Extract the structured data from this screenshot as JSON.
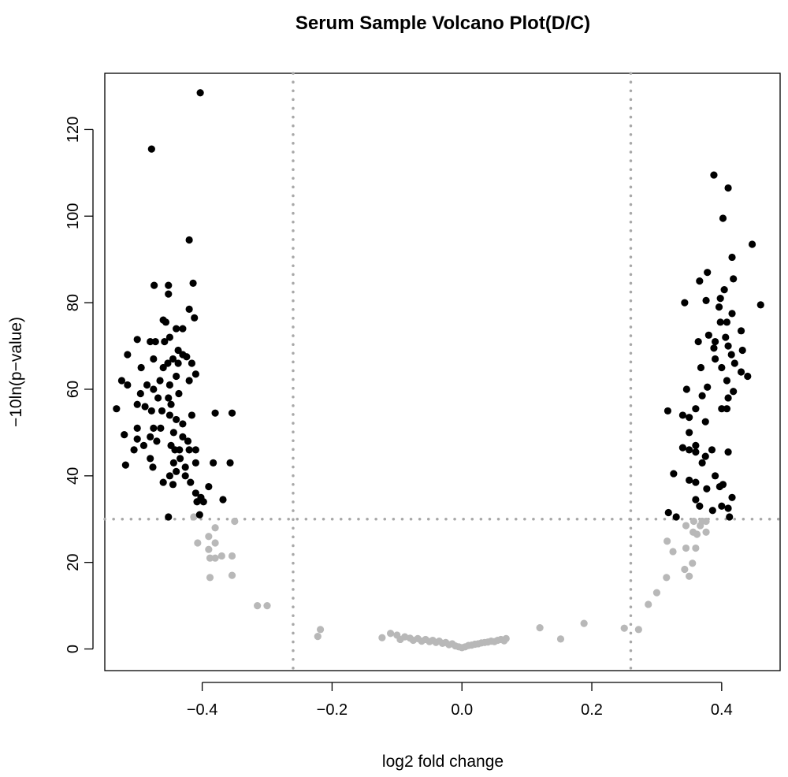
{
  "chart_data": {
    "type": "scatter",
    "title": "Serum Sample Volcano Plot(D/C)",
    "xlabel": "log2 fold change",
    "ylabel": "−10ln(p−value)",
    "xlim": [
      -0.55,
      0.49
    ],
    "ylim": [
      -5,
      133
    ],
    "xticks": [
      -0.4,
      -0.2,
      0.0,
      0.2,
      0.4
    ],
    "xtick_labels": [
      "−0.4",
      "−0.2",
      "0.0",
      "0.2",
      "0.4"
    ],
    "yticks": [
      0,
      20,
      40,
      60,
      80,
      100,
      120
    ],
    "ytick_labels": [
      "0",
      "20",
      "40",
      "60",
      "80",
      "100",
      "120"
    ],
    "thresholds": {
      "x": [
        -0.26,
        0.26
      ],
      "y": 30
    },
    "grid": false,
    "legend": "none",
    "colors": {
      "significant": "#000000",
      "nonsignificant": "#b8b8b8",
      "threshold": "#a8a8a8"
    },
    "series": [
      {
        "name": "significant",
        "color": "#000000",
        "points": [
          [
            -0.403,
            128.5
          ],
          [
            -0.478,
            115.5
          ],
          [
            -0.42,
            94.5
          ],
          [
            -0.414,
            84.5
          ],
          [
            -0.474,
            84
          ],
          [
            -0.452,
            84
          ],
          [
            -0.452,
            82
          ],
          [
            -0.42,
            78.5
          ],
          [
            -0.412,
            76.5
          ],
          [
            -0.46,
            76
          ],
          [
            -0.456,
            75.5
          ],
          [
            -0.43,
            74
          ],
          [
            -0.44,
            74
          ],
          [
            -0.48,
            71
          ],
          [
            -0.5,
            71.5
          ],
          [
            -0.472,
            71
          ],
          [
            -0.458,
            71
          ],
          [
            -0.45,
            72
          ],
          [
            -0.437,
            69
          ],
          [
            -0.43,
            68
          ],
          [
            -0.445,
            67
          ],
          [
            -0.453,
            66
          ],
          [
            -0.437,
            66
          ],
          [
            -0.46,
            65
          ],
          [
            -0.475,
            67
          ],
          [
            -0.494,
            65
          ],
          [
            -0.515,
            68
          ],
          [
            -0.424,
            67.5
          ],
          [
            -0.416,
            66
          ],
          [
            -0.41,
            63.5
          ],
          [
            -0.44,
            63
          ],
          [
            -0.465,
            62
          ],
          [
            -0.42,
            62
          ],
          [
            -0.45,
            61
          ],
          [
            -0.485,
            61
          ],
          [
            -0.475,
            60
          ],
          [
            -0.495,
            59
          ],
          [
            -0.515,
            61
          ],
          [
            -0.524,
            62
          ],
          [
            -0.468,
            58
          ],
          [
            -0.452,
            58
          ],
          [
            -0.436,
            59
          ],
          [
            -0.448,
            56.5
          ],
          [
            -0.462,
            55
          ],
          [
            -0.478,
            55
          ],
          [
            -0.488,
            56
          ],
          [
            -0.5,
            56.5
          ],
          [
            -0.532,
            55.5
          ],
          [
            -0.45,
            54
          ],
          [
            -0.44,
            53
          ],
          [
            -0.416,
            54
          ],
          [
            -0.38,
            54.5
          ],
          [
            -0.354,
            54.5
          ],
          [
            -0.43,
            52
          ],
          [
            -0.464,
            51
          ],
          [
            -0.475,
            51
          ],
          [
            -0.5,
            51
          ],
          [
            -0.444,
            50
          ],
          [
            -0.48,
            49
          ],
          [
            -0.52,
            49.5
          ],
          [
            -0.43,
            49
          ],
          [
            -0.422,
            48
          ],
          [
            -0.47,
            48
          ],
          [
            -0.5,
            48.5
          ],
          [
            -0.448,
            47
          ],
          [
            -0.442,
            46
          ],
          [
            -0.435,
            46
          ],
          [
            -0.42,
            46
          ],
          [
            -0.41,
            46
          ],
          [
            -0.49,
            47
          ],
          [
            -0.505,
            46
          ],
          [
            -0.48,
            44
          ],
          [
            -0.434,
            44
          ],
          [
            -0.444,
            43
          ],
          [
            -0.426,
            42
          ],
          [
            -0.41,
            43
          ],
          [
            -0.383,
            43
          ],
          [
            -0.357,
            43
          ],
          [
            -0.476,
            42
          ],
          [
            -0.518,
            42.5
          ],
          [
            -0.44,
            41
          ],
          [
            -0.45,
            40
          ],
          [
            -0.426,
            40
          ],
          [
            -0.46,
            38.5
          ],
          [
            -0.445,
            38
          ],
          [
            -0.418,
            38.5
          ],
          [
            -0.41,
            36
          ],
          [
            -0.39,
            37.5
          ],
          [
            -0.402,
            35
          ],
          [
            -0.398,
            34
          ],
          [
            -0.368,
            34.5
          ],
          [
            -0.408,
            34
          ],
          [
            -0.404,
            31
          ],
          [
            -0.452,
            30.5
          ],
          [
            0.388,
            109.5
          ],
          [
            0.41,
            106.5
          ],
          [
            0.402,
            99.5
          ],
          [
            0.447,
            93.5
          ],
          [
            0.416,
            90.5
          ],
          [
            0.378,
            87
          ],
          [
            0.366,
            85
          ],
          [
            0.418,
            85.5
          ],
          [
            0.404,
            83
          ],
          [
            0.398,
            81
          ],
          [
            0.376,
            80.5
          ],
          [
            0.343,
            80
          ],
          [
            0.396,
            79
          ],
          [
            0.46,
            79.5
          ],
          [
            0.416,
            77.5
          ],
          [
            0.398,
            75.5
          ],
          [
            0.408,
            75.5
          ],
          [
            0.43,
            73.5
          ],
          [
            0.364,
            71
          ],
          [
            0.38,
            72.5
          ],
          [
            0.39,
            71
          ],
          [
            0.388,
            69.5
          ],
          [
            0.406,
            72
          ],
          [
            0.41,
            70
          ],
          [
            0.415,
            68
          ],
          [
            0.432,
            69
          ],
          [
            0.39,
            67
          ],
          [
            0.368,
            65
          ],
          [
            0.4,
            65
          ],
          [
            0.42,
            66
          ],
          [
            0.43,
            64
          ],
          [
            0.44,
            63
          ],
          [
            0.408,
            62
          ],
          [
            0.378,
            60.5
          ],
          [
            0.346,
            60
          ],
          [
            0.418,
            59.5
          ],
          [
            0.41,
            58
          ],
          [
            0.37,
            58.5
          ],
          [
            0.36,
            55.5
          ],
          [
            0.4,
            55.5
          ],
          [
            0.408,
            55.5
          ],
          [
            0.317,
            55
          ],
          [
            0.34,
            54
          ],
          [
            0.35,
            53.5
          ],
          [
            0.375,
            52.5
          ],
          [
            0.35,
            50
          ],
          [
            0.36,
            47
          ],
          [
            0.35,
            46
          ],
          [
            0.34,
            46.5
          ],
          [
            0.36,
            45.5
          ],
          [
            0.375,
            44.5
          ],
          [
            0.385,
            46
          ],
          [
            0.41,
            45.5
          ],
          [
            0.37,
            43
          ],
          [
            0.326,
            40.5
          ],
          [
            0.35,
            39
          ],
          [
            0.36,
            38.5
          ],
          [
            0.39,
            40
          ],
          [
            0.397,
            37.5
          ],
          [
            0.402,
            38
          ],
          [
            0.36,
            34.5
          ],
          [
            0.377,
            37
          ],
          [
            0.366,
            33
          ],
          [
            0.4,
            33
          ],
          [
            0.41,
            32.5
          ],
          [
            0.416,
            35
          ],
          [
            0.386,
            32
          ],
          [
            0.318,
            31.5
          ],
          [
            0.33,
            30.5
          ],
          [
            0.412,
            30.5
          ]
        ]
      },
      {
        "name": "nonsignificant",
        "color": "#b8b8b8",
        "points": [
          [
            -0.413,
            30.5
          ],
          [
            -0.35,
            29.5
          ],
          [
            -0.38,
            28
          ],
          [
            -0.39,
            26
          ],
          [
            -0.407,
            24.5
          ],
          [
            -0.38,
            24.5
          ],
          [
            -0.39,
            23
          ],
          [
            -0.37,
            21.5
          ],
          [
            -0.388,
            21
          ],
          [
            -0.38,
            21
          ],
          [
            -0.354,
            21.5
          ],
          [
            -0.354,
            17
          ],
          [
            -0.388,
            16.5
          ],
          [
            -0.315,
            10
          ],
          [
            -0.3,
            10
          ],
          [
            -0.218,
            4.5
          ],
          [
            -0.222,
            2.9
          ],
          [
            -0.123,
            2.6
          ],
          [
            -0.11,
            3.6
          ],
          [
            -0.1,
            3.2
          ],
          [
            -0.095,
            2.2
          ],
          [
            -0.088,
            2.8
          ],
          [
            -0.08,
            2.5
          ],
          [
            -0.075,
            2.0
          ],
          [
            -0.068,
            2.4
          ],
          [
            -0.062,
            1.8
          ],
          [
            -0.056,
            2.2
          ],
          [
            -0.05,
            1.7
          ],
          [
            -0.045,
            2.0
          ],
          [
            -0.04,
            1.5
          ],
          [
            -0.035,
            1.8
          ],
          [
            -0.03,
            1.3
          ],
          [
            -0.025,
            1.5
          ],
          [
            -0.02,
            1.0
          ],
          [
            -0.015,
            1.2
          ],
          [
            -0.01,
            0.7
          ],
          [
            -0.005,
            0.5
          ],
          [
            0.0,
            0.3
          ],
          [
            0.005,
            0.5
          ],
          [
            0.01,
            0.8
          ],
          [
            0.015,
            0.9
          ],
          [
            0.02,
            1.1
          ],
          [
            0.025,
            1.2
          ],
          [
            0.03,
            1.4
          ],
          [
            0.035,
            1.5
          ],
          [
            0.04,
            1.6
          ],
          [
            0.045,
            1.8
          ],
          [
            0.05,
            1.7
          ],
          [
            0.055,
            2.0
          ],
          [
            0.06,
            2.2
          ],
          [
            0.065,
            1.9
          ],
          [
            0.068,
            2.4
          ],
          [
            0.12,
            4.9
          ],
          [
            0.152,
            2.3
          ],
          [
            0.188,
            5.9
          ],
          [
            0.25,
            4.8
          ],
          [
            0.272,
            4.5
          ],
          [
            0.287,
            10.3
          ],
          [
            0.3,
            13
          ],
          [
            0.315,
            16.5
          ],
          [
            0.316,
            24.9
          ],
          [
            0.325,
            22.5
          ],
          [
            0.343,
            18.4
          ],
          [
            0.345,
            23.3
          ],
          [
            0.35,
            16.8
          ],
          [
            0.355,
            19.8
          ],
          [
            0.36,
            23.3
          ],
          [
            0.362,
            26.5
          ],
          [
            0.367,
            28.5
          ],
          [
            0.37,
            29.5
          ],
          [
            0.376,
            27
          ],
          [
            0.376,
            29.5
          ],
          [
            0.356,
            27
          ],
          [
            0.357,
            29.5
          ],
          [
            0.345,
            28.5
          ]
        ]
      }
    ]
  }
}
